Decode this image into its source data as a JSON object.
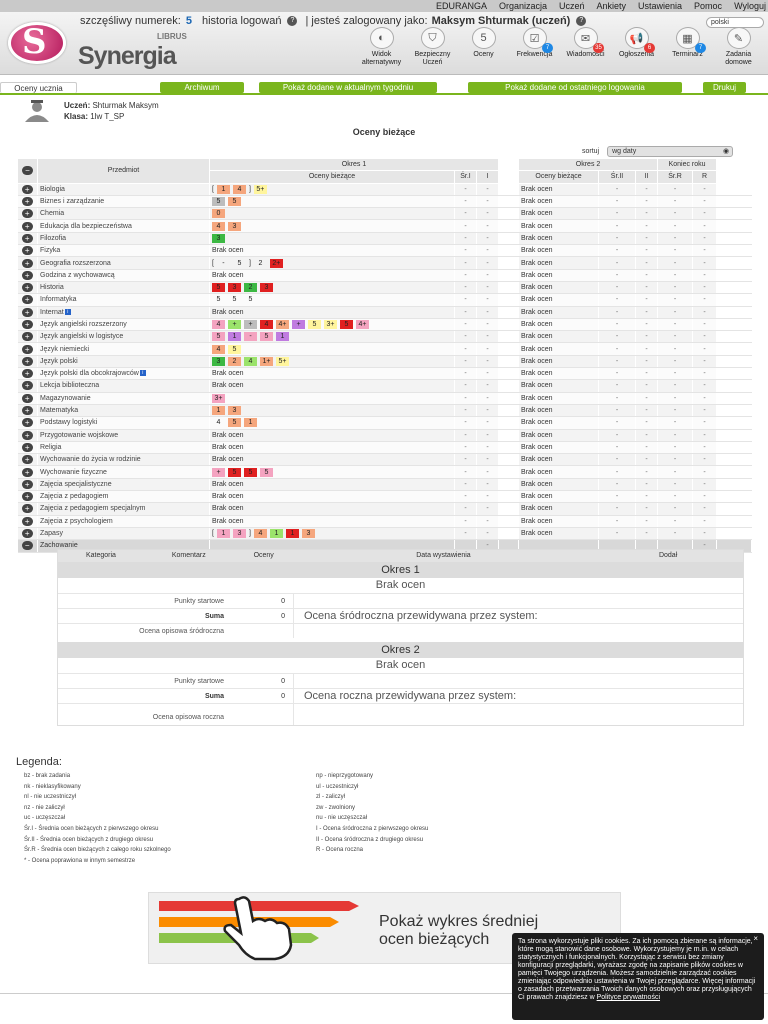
{
  "topnav": [
    "EDURANGA",
    "Organizacja",
    "Uczeń",
    "Ankiety",
    "Ustawienia",
    "Pomoc",
    "Wyloguj"
  ],
  "info": {
    "lucky_label": "szczęśliwy numerek:",
    "lucky": "5",
    "history": "historia logowań",
    "logged": "| jesteś zalogowany jako:",
    "user": "Maksym Shturmak (uczeń)",
    "lang": "polski"
  },
  "logo": {
    "text": "Synergia",
    "sub": "LIBRUS"
  },
  "icons": [
    {
      "label": "Widok alternatywny",
      "icon": "half-circle-icon",
      "badge": ""
    },
    {
      "label": "Bezpieczny Uczeń",
      "icon": "shield-icon",
      "badge": ""
    },
    {
      "label": "Oceny",
      "icon": "grade-icon",
      "badge": ""
    },
    {
      "label": "Frekwencja",
      "icon": "calendar-icon",
      "badge": "7"
    },
    {
      "label": "Wiadomości",
      "icon": "envelope-icon",
      "badge": "35"
    },
    {
      "label": "Ogłoszenia",
      "icon": "megaphone-icon",
      "badge": "6"
    },
    {
      "label": "Terminarz",
      "icon": "planner-icon",
      "badge": "7"
    },
    {
      "label": "Zadania domowe",
      "icon": "homework-icon",
      "badge": ""
    }
  ],
  "tabs": {
    "t0": "Oceny ucznia",
    "t1": "Archiwum",
    "t2": "Pokaż dodane w aktualnym tygodniu",
    "t3": "Pokaż dodane od ostatniego logowania",
    "t4": "Drukuj"
  },
  "student": {
    "name_label": "Uczeń:",
    "name": "Shturmak Maksym",
    "class_label": "Klasa:",
    "class": "1lw T_SP"
  },
  "title": "Oceny bieżące",
  "sort": {
    "label": "sortuj",
    "value": "wg daty"
  },
  "table": {
    "h_subject": "Przedmiot",
    "h_okres1": "Okres 1",
    "h_okres2": "Okres 2",
    "h_koniec": "Koniec roku",
    "h_oceny": "Oceny bieżące",
    "h_sr1": "Śr.I",
    "h_i": "I",
    "h_sr2": "Śr.II",
    "h_ii": "II",
    "h_srr": "Śr.R",
    "h_r": "R",
    "rows": [
      {
        "name": "Biologia",
        "g1": [
          [
            "[",
            ""
          ],
          [
            "1",
            "#f5a67d"
          ],
          [
            "4",
            "#f5a67d"
          ],
          [
            "]",
            ""
          ],
          [
            "5+",
            "#fff59d"
          ]
        ],
        "g2": "Brak ocen"
      },
      {
        "name": "Biznes i zarządzanie",
        "g1": [
          [
            "5",
            "#bdbdbd"
          ],
          [
            "5",
            "#f5a67d"
          ]
        ],
        "g2": "Brak ocen"
      },
      {
        "name": "Chemia",
        "g1": [
          [
            "0",
            "#f5a67d"
          ]
        ],
        "g2": "Brak ocen"
      },
      {
        "name": "Edukacja dla bezpieczeństwa",
        "g1": [
          [
            "4",
            "#f5a67d"
          ],
          [
            "3",
            "#f5a67d"
          ]
        ],
        "g2": "Brak ocen"
      },
      {
        "name": "Filozofia",
        "g1": [
          [
            "3",
            "#3cb843"
          ]
        ],
        "g2": "Brak ocen"
      },
      {
        "name": "Fizyka",
        "g1": "Brak ocen",
        "g2": "Brak ocen"
      },
      {
        "name": "Geografia rozszerzona",
        "g1": [
          [
            "[",
            ""
          ],
          [
            "-",
            ""
          ],
          [
            "5",
            ""
          ],
          [
            "]",
            ""
          ],
          [
            "2",
            ""
          ],
          [
            "2+",
            "#e02020"
          ]
        ],
        "g2": "Brak ocen"
      },
      {
        "name": "Godzina z wychowawcą",
        "g1": "Brak ocen",
        "g2": "Brak ocen"
      },
      {
        "name": "Historia",
        "g1": [
          [
            "5",
            "#e02020"
          ],
          [
            "3",
            "#e02020"
          ],
          [
            "2",
            "#3cb843"
          ],
          [
            "3",
            "#e02020"
          ]
        ],
        "g2": "Brak ocen"
      },
      {
        "name": "Informatyka",
        "g1": [
          [
            "5",
            ""
          ],
          [
            "5",
            ""
          ],
          [
            "5",
            ""
          ]
        ],
        "g2": "Brak ocen"
      },
      {
        "name": "Internat",
        "nfo": true,
        "g1": "Brak ocen",
        "g2": "Brak ocen"
      },
      {
        "name": "Język angielski rozszerzony",
        "g1": [
          [
            "4",
            "#f4a3c0"
          ],
          [
            "+",
            "#9be36b"
          ],
          [
            "+",
            "#bdbdbd"
          ],
          [
            "4",
            "#e02020"
          ],
          [
            "4+",
            "#f5a67d"
          ],
          [
            "+",
            "#c07be0"
          ],
          [
            "5",
            "#fff59d"
          ],
          [
            "3+",
            "#fff59d"
          ],
          [
            "5",
            "#e02020"
          ],
          [
            "4+",
            "#f4a3c0"
          ]
        ],
        "g2": "Brak ocen"
      },
      {
        "name": "Język angielski w logistyce",
        "g1": [
          [
            "5",
            "#f4a3c0"
          ],
          [
            "1",
            "#c07be0"
          ],
          [
            "-",
            "#f4a3c0"
          ],
          [
            "5",
            "#f4a3c0"
          ],
          [
            "1",
            "#c07be0"
          ]
        ],
        "g2": "Brak ocen"
      },
      {
        "name": "Język niemiecki",
        "g1": [
          [
            "4",
            "#f5a67d"
          ],
          [
            "5",
            "#fff59d"
          ]
        ],
        "g2": "Brak ocen"
      },
      {
        "name": "Język polski",
        "g1": [
          [
            "3",
            "#3cb843"
          ],
          [
            "2",
            "#f5a67d"
          ],
          [
            "4",
            "#9be36b"
          ],
          [
            "1+",
            "#f5a67d"
          ],
          [
            "5+",
            "#fff59d"
          ]
        ],
        "g2": "Brak ocen"
      },
      {
        "name": "Język polski dla obcokrajowców",
        "nfo": true,
        "g1": "Brak ocen",
        "g2": "Brak ocen"
      },
      {
        "name": "Lekcja biblioteczna",
        "g1": "Brak ocen",
        "g2": "Brak ocen"
      },
      {
        "name": "Magazynowanie",
        "g1": [
          [
            "3+",
            "#f4a3c0"
          ]
        ],
        "g2": "Brak ocen"
      },
      {
        "name": "Matematyka",
        "g1": [
          [
            "1",
            "#f5a67d"
          ],
          [
            "3",
            "#f5a67d"
          ]
        ],
        "g2": "Brak ocen"
      },
      {
        "name": "Podstawy logistyki",
        "g1": [
          [
            "4",
            ""
          ],
          [
            "5",
            "#f5a67d"
          ],
          [
            "1",
            "#f5a67d"
          ]
        ],
        "g2": "Brak ocen"
      },
      {
        "name": "Przygotowanie wojskowe",
        "g1": "Brak ocen",
        "g2": "Brak ocen"
      },
      {
        "name": "Religia",
        "g1": "Brak ocen",
        "g2": "Brak ocen"
      },
      {
        "name": "Wychowanie do życia w rodzinie",
        "g1": "Brak ocen",
        "g2": "Brak ocen"
      },
      {
        "name": "Wychowanie fizyczne",
        "g1": [
          [
            "+",
            "#f4a3c0"
          ],
          [
            "5",
            "#e02020"
          ],
          [
            "5",
            "#e02020"
          ],
          [
            "5",
            "#f4a3c0"
          ]
        ],
        "g2": "Brak ocen"
      },
      {
        "name": "Zajęcia specjalistyczne",
        "g1": "Brak ocen",
        "g2": "Brak ocen"
      },
      {
        "name": "Zajęcia z pedagogiem",
        "g1": "Brak ocen",
        "g2": "Brak ocen"
      },
      {
        "name": "Zajęcia z pedagogiem specjalnym",
        "g1": "Brak ocen",
        "g2": "Brak ocen"
      },
      {
        "name": "Zajęcia z psychologiem",
        "g1": "Brak ocen",
        "g2": "Brak ocen"
      },
      {
        "name": "Zapasy",
        "g1": [
          [
            "[",
            ""
          ],
          [
            "1",
            "#f4a3c0"
          ],
          [
            "3",
            "#f4a3c0"
          ],
          [
            "]",
            ""
          ],
          [
            "4",
            "#f5a67d"
          ],
          [
            "1",
            "#9be36b"
          ],
          [
            "1",
            "#e02020"
          ],
          [
            "3",
            "#f5a67d"
          ]
        ],
        "g2": "Brak ocen"
      }
    ],
    "zach": "Zachowanie"
  },
  "behavior": {
    "h": [
      "Kategoria",
      "Komentarz",
      "Oceny",
      "Data wystawienia",
      "Dodał"
    ],
    "okres1": "Okres 1",
    "okres2": "Okres 2",
    "brak": "Brak ocen",
    "pkt": "Punkty startowe",
    "suma": "Suma",
    "zero": "0",
    "prop1": "Ocena śródroczna przewidywana przez system:",
    "prop2": "Ocena roczna przewidywana przez system:",
    "opis1": "Ocena opisowa śródroczna",
    "opis2": "Ocena opisowa roczna"
  },
  "legend": {
    "title": "Legenda:",
    "left": [
      "bz - brak zadania",
      "nk - nieklasyfikowany",
      "nl - nie uczestniczył",
      "nz - nie zaliczył",
      "uc - uczęszczał",
      "Śr.I - Średnia ocen bieżących z pierwszego okresu",
      "Śr.II - Średnia ocen bieżących z drugiego okresu",
      "Śr.R - Średnia ocen bieżących z całego roku szkolnego",
      "* - Ocena poprawiona w innym semestrze"
    ],
    "right": [
      "np - nieprzygotowany",
      "ul - uczestniczył",
      "zl - zaliczył",
      "zw - zwolniony",
      "nu - nie uczęszczał",
      "I - Ocena śródroczna z pierwszego okresu",
      "II - Ocena śródroczna z drugiego okresu",
      "R - Ocena roczna"
    ]
  },
  "banner": {
    "l1": "Pokaż wykres średniej",
    "l2": "ocen bieżących"
  },
  "cookie": {
    "text": "Ta strona wykorzystuje pliki cookies. Za ich pomocą zbierane są informacje, które mogą stanowić dane osobowe. Wykorzystujemy je m.in. w celach statystycznych i funkcjonalnych. Korzystając z serwisu bez zmiany konfiguracji przeglądarki, wyrażasz zgodę na zapisanie plików cookies w pamięci Twojego urządzenia. Możesz samodzielnie zarządzać cookies zmieniając odpowiednio ustawienia w Twojej przeglądarce. Więcej informacji o zasadach przetwarzania Twoich danych osobowych oraz przysługujących Ci prawach znajdziesz w ",
    "link": "Polityce prywatności",
    "close": "×"
  }
}
